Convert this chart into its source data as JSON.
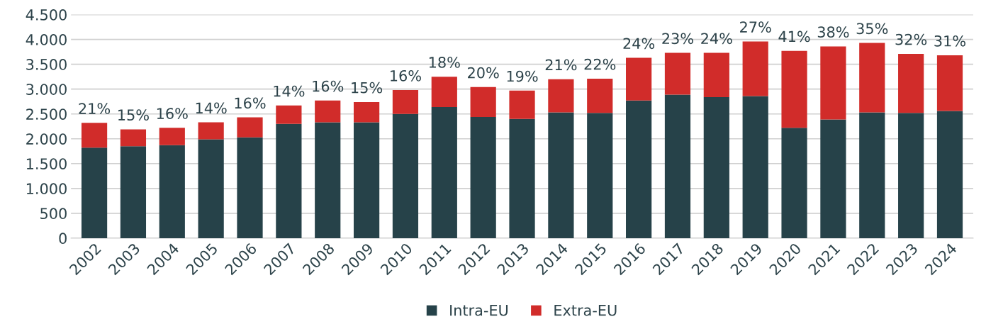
{
  "chart_data": {
    "type": "bar",
    "stacked": true,
    "categories": [
      "2002",
      "2003",
      "2004",
      "2005",
      "2006",
      "2007",
      "2008",
      "2009",
      "2010",
      "2011",
      "2012",
      "2013",
      "2014",
      "2015",
      "2016",
      "2017",
      "2018",
      "2019",
      "2020",
      "2021",
      "2022",
      "2023",
      "2024"
    ],
    "series": [
      {
        "name": "Intra-EU",
        "color": "#264249",
        "values": [
          1820,
          1850,
          1870,
          1990,
          2030,
          2300,
          2330,
          2330,
          2500,
          2640,
          2440,
          2400,
          2530,
          2520,
          2770,
          2890,
          2840,
          2860,
          2220,
          2390,
          2530,
          2520,
          2560
        ]
      },
      {
        "name": "Extra-EU",
        "color": "#d12c2a",
        "values": [
          500,
          340,
          350,
          340,
          400,
          370,
          440,
          410,
          480,
          610,
          600,
          570,
          670,
          690,
          860,
          840,
          890,
          1100,
          1550,
          1470,
          1400,
          1190,
          1120
        ]
      }
    ],
    "annotations": [
      {
        "text": "21%",
        "x": "2002",
        "y": 2320
      },
      {
        "text": "15%",
        "x": "2003",
        "y": 2190
      },
      {
        "text": "16%",
        "x": "2004",
        "y": 2220
      },
      {
        "text": "14%",
        "x": "2005",
        "y": 2330
      },
      {
        "text": "16%",
        "x": "2006",
        "y": 2430
      },
      {
        "text": "14%",
        "x": "2007",
        "y": 2670
      },
      {
        "text": "16%",
        "x": "2008",
        "y": 2770
      },
      {
        "text": "15%",
        "x": "2009",
        "y": 2740
      },
      {
        "text": "16%",
        "x": "2010",
        "y": 2980
      },
      {
        "text": "18%",
        "x": "2011",
        "y": 3250
      },
      {
        "text": "20%",
        "x": "2012",
        "y": 3040
      },
      {
        "text": "19%",
        "x": "2013",
        "y": 2970
      },
      {
        "text": "21%",
        "x": "2014",
        "y": 3200
      },
      {
        "text": "22%",
        "x": "2015",
        "y": 3210
      },
      {
        "text": "24%",
        "x": "2016",
        "y": 3630
      },
      {
        "text": "23%",
        "x": "2017",
        "y": 3730
      },
      {
        "text": "24%",
        "x": "2018",
        "y": 3730
      },
      {
        "text": "27%",
        "x": "2019",
        "y": 3960
      },
      {
        "text": "41%",
        "x": "2020",
        "y": 3770
      },
      {
        "text": "38%",
        "x": "2021",
        "y": 3860
      },
      {
        "text": "35%",
        "x": "2022",
        "y": 3930
      },
      {
        "text": "32%",
        "x": "2023",
        "y": 3710
      },
      {
        "text": "31%",
        "x": "2024",
        "y": 3680
      }
    ],
    "ylim": [
      0,
      4500
    ],
    "yticks": [
      {
        "value": 0,
        "label": "0"
      },
      {
        "value": 500,
        "label": "500"
      },
      {
        "value": 1000,
        "label": "1.000"
      },
      {
        "value": 1500,
        "label": "1.500"
      },
      {
        "value": 2000,
        "label": "2.000"
      },
      {
        "value": 2500,
        "label": "2.500"
      },
      {
        "value": 3000,
        "label": "3.000"
      },
      {
        "value": 3500,
        "label": "3.500"
      },
      {
        "value": 4000,
        "label": "4.000"
      },
      {
        "value": 4500,
        "label": "4.500"
      }
    ],
    "grid": "y",
    "legend": "bottom"
  }
}
